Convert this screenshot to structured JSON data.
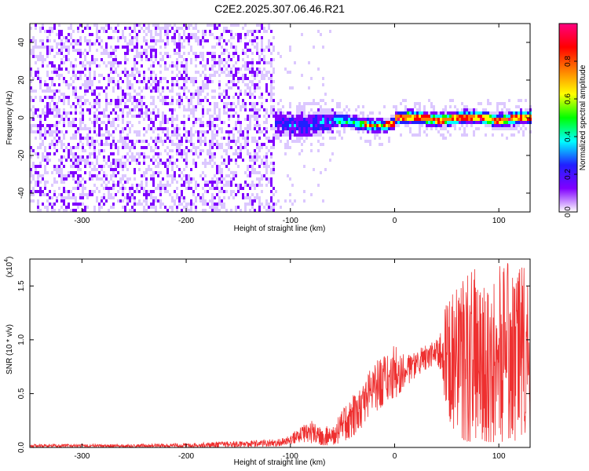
{
  "figure": {
    "title": "C2E2.2025.307.06.46.R21"
  },
  "chart_data": [
    {
      "type": "heatmap",
      "xlabel": "Height of straight line (km)",
      "ylabel": "Frequency (Hz)",
      "xlim": [
        -350,
        130
      ],
      "ylim": [
        -50,
        50
      ],
      "x_ticks": [
        -300,
        -200,
        -100,
        0,
        100
      ],
      "y_ticks": [
        -40,
        -20,
        0,
        20,
        40
      ],
      "colorbar": {
        "label": "Normalized spectral amplitude",
        "range": [
          0.0,
          1.0
        ],
        "ticks": [
          "0.0",
          "0.2",
          "0.4",
          "0.6",
          "0.8"
        ],
        "colors": [
          "#ffffff",
          "#dcc8ff",
          "#8000ff",
          "#2020ff",
          "#00ffff",
          "#00ff00",
          "#ffff00",
          "#ff8000",
          "#ff0000",
          "#ff0080"
        ]
      },
      "description_regions": [
        {
          "x_range": [
            -350,
            -115
          ],
          "freq_range": [
            -50,
            50
          ],
          "amplitude": "low, noisy"
        },
        {
          "x_range": [
            -115,
            130
          ],
          "freq_range": [
            -8,
            8
          ],
          "amplitude": "concentrated band near 0 Hz, peak ~0.9 around x=0..100"
        }
      ]
    },
    {
      "type": "line",
      "xlabel": "Height of straight line (km)",
      "ylabel": "SNR (10 * v/v)",
      "y_multiplier_label": "(x10",
      "y_multiplier_exp": "4",
      "y_multiplier_close": ")",
      "xlim": [
        -350,
        130
      ],
      "ylim": [
        0,
        1.75
      ],
      "x_ticks": [
        -300,
        -200,
        -100,
        0,
        100
      ],
      "y_ticks": [
        0.0,
        0.5,
        1.0,
        1.5
      ],
      "y_tick_labels": [
        "0.0",
        "0.5",
        "1.0",
        "1.5"
      ],
      "series": [
        {
          "color": "#ee3030",
          "envelope": {
            "x": [
              -350,
              -300,
              -250,
              -200,
              -150,
              -110,
              -100,
              -90,
              -80,
              -70,
              -60,
              -50,
              -40,
              -30,
              -20,
              -10,
              0,
              10,
              20,
              30,
              40,
              45,
              50,
              60,
              70,
              80,
              90,
              100,
              110,
              120,
              130
            ],
            "low": [
              0,
              0,
              0,
              0,
              0,
              0.01,
              0.03,
              0.05,
              0.04,
              0.02,
              0.02,
              0.05,
              0.1,
              0.2,
              0.3,
              0.4,
              0.45,
              0.55,
              0.65,
              0.72,
              0.78,
              0.7,
              0.3,
              0.1,
              0.05,
              0.05,
              0.05,
              0.05,
              0.05,
              0.05,
              0.05
            ],
            "high": [
              0.03,
              0.03,
              0.03,
              0.04,
              0.06,
              0.08,
              0.12,
              0.2,
              0.25,
              0.2,
              0.2,
              0.35,
              0.5,
              0.6,
              0.8,
              0.85,
              0.95,
              0.85,
              0.9,
              0.95,
              1.0,
              1.1,
              1.4,
              1.5,
              1.65,
              1.7,
              1.6,
              1.7,
              1.72,
              1.75,
              1.72
            ]
          }
        }
      ]
    }
  ]
}
